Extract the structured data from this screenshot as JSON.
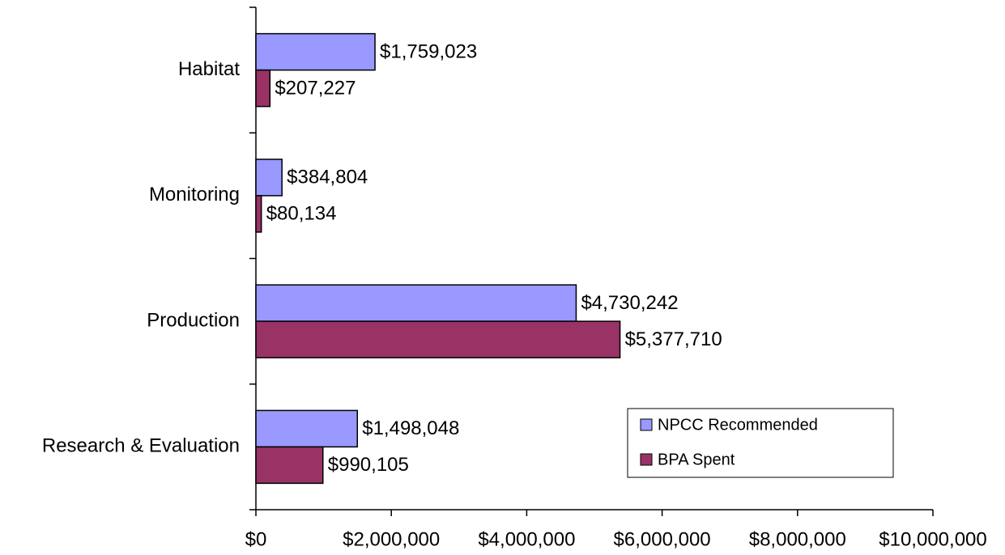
{
  "chart_data": {
    "type": "barh",
    "categories": [
      "Habitat",
      "Monitoring",
      "Production",
      "Research & Evaluation"
    ],
    "series": [
      {
        "name": "NPCC Recommended",
        "color": "#9999ff",
        "values": [
          1759023,
          384804,
          4730242,
          1498048
        ],
        "value_labels": [
          "$1,759,023",
          "$384,804",
          "$4,730,242",
          "$1,498,048"
        ]
      },
      {
        "name": "BPA Spent",
        "color": "#993366",
        "values": [
          207227,
          80134,
          5377710,
          990105
        ],
        "value_labels": [
          "$207,227",
          "$80,134",
          "$5,377,710",
          "$990,105"
        ]
      }
    ],
    "xlim": [
      0,
      10000000
    ],
    "xticks": [
      {
        "value": 0,
        "label": "$0"
      },
      {
        "value": 2000000,
        "label": "$2,000,000"
      },
      {
        "value": 4000000,
        "label": "$4,000,000"
      },
      {
        "value": 6000000,
        "label": "$6,000,000"
      },
      {
        "value": 8000000,
        "label": "$8,000,000"
      },
      {
        "value": 10000000,
        "label": "$10,000,000"
      }
    ],
    "legend": "lower right"
  }
}
